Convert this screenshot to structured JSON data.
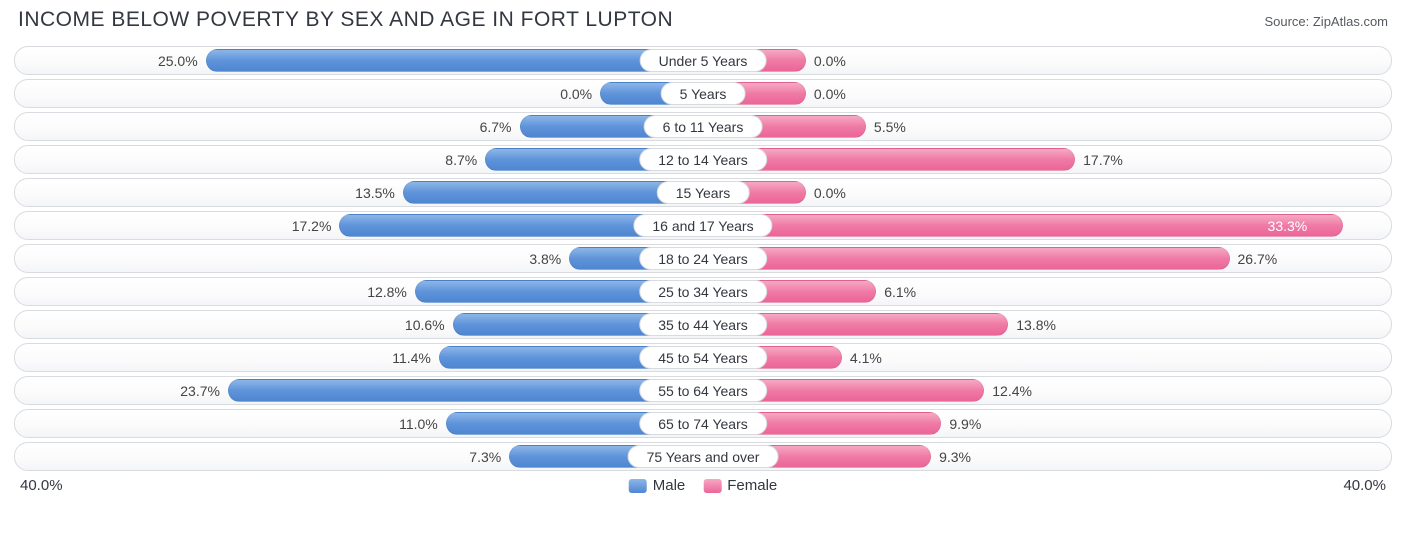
{
  "title": "INCOME BELOW POVERTY BY SEX AND AGE IN FORT LUPTON",
  "source": "Source: ZipAtlas.com",
  "axis_max": 40.0,
  "axis_label_left": "40.0%",
  "axis_label_right": "40.0%",
  "legend": {
    "male": "Male",
    "female": "Female"
  },
  "colors": {
    "male_top": "#8db6e8",
    "male_bottom": "#4f86d1",
    "female_top": "#f6a9c3",
    "female_bottom": "#ec6598",
    "row_border": "#d8dbe0",
    "text": "#333740",
    "bg": "#ffffff"
  },
  "bar_min_pct_visual": 5.0,
  "rows": [
    {
      "category": "Under 5 Years",
      "male": 25.0,
      "female": 0.0
    },
    {
      "category": "5 Years",
      "male": 0.0,
      "female": 0.0
    },
    {
      "category": "6 to 11 Years",
      "male": 6.7,
      "female": 5.5
    },
    {
      "category": "12 to 14 Years",
      "male": 8.7,
      "female": 17.7
    },
    {
      "category": "15 Years",
      "male": 13.5,
      "female": 0.0
    },
    {
      "category": "16 and 17 Years",
      "male": 17.2,
      "female": 33.3
    },
    {
      "category": "18 to 24 Years",
      "male": 3.8,
      "female": 26.7
    },
    {
      "category": "25 to 34 Years",
      "male": 12.8,
      "female": 6.1
    },
    {
      "category": "35 to 44 Years",
      "male": 10.6,
      "female": 13.8
    },
    {
      "category": "45 to 54 Years",
      "male": 11.4,
      "female": 4.1
    },
    {
      "category": "55 to 64 Years",
      "male": 23.7,
      "female": 12.4
    },
    {
      "category": "65 to 74 Years",
      "male": 11.0,
      "female": 9.9
    },
    {
      "category": "75 Years and over",
      "male": 7.3,
      "female": 9.3
    }
  ]
}
